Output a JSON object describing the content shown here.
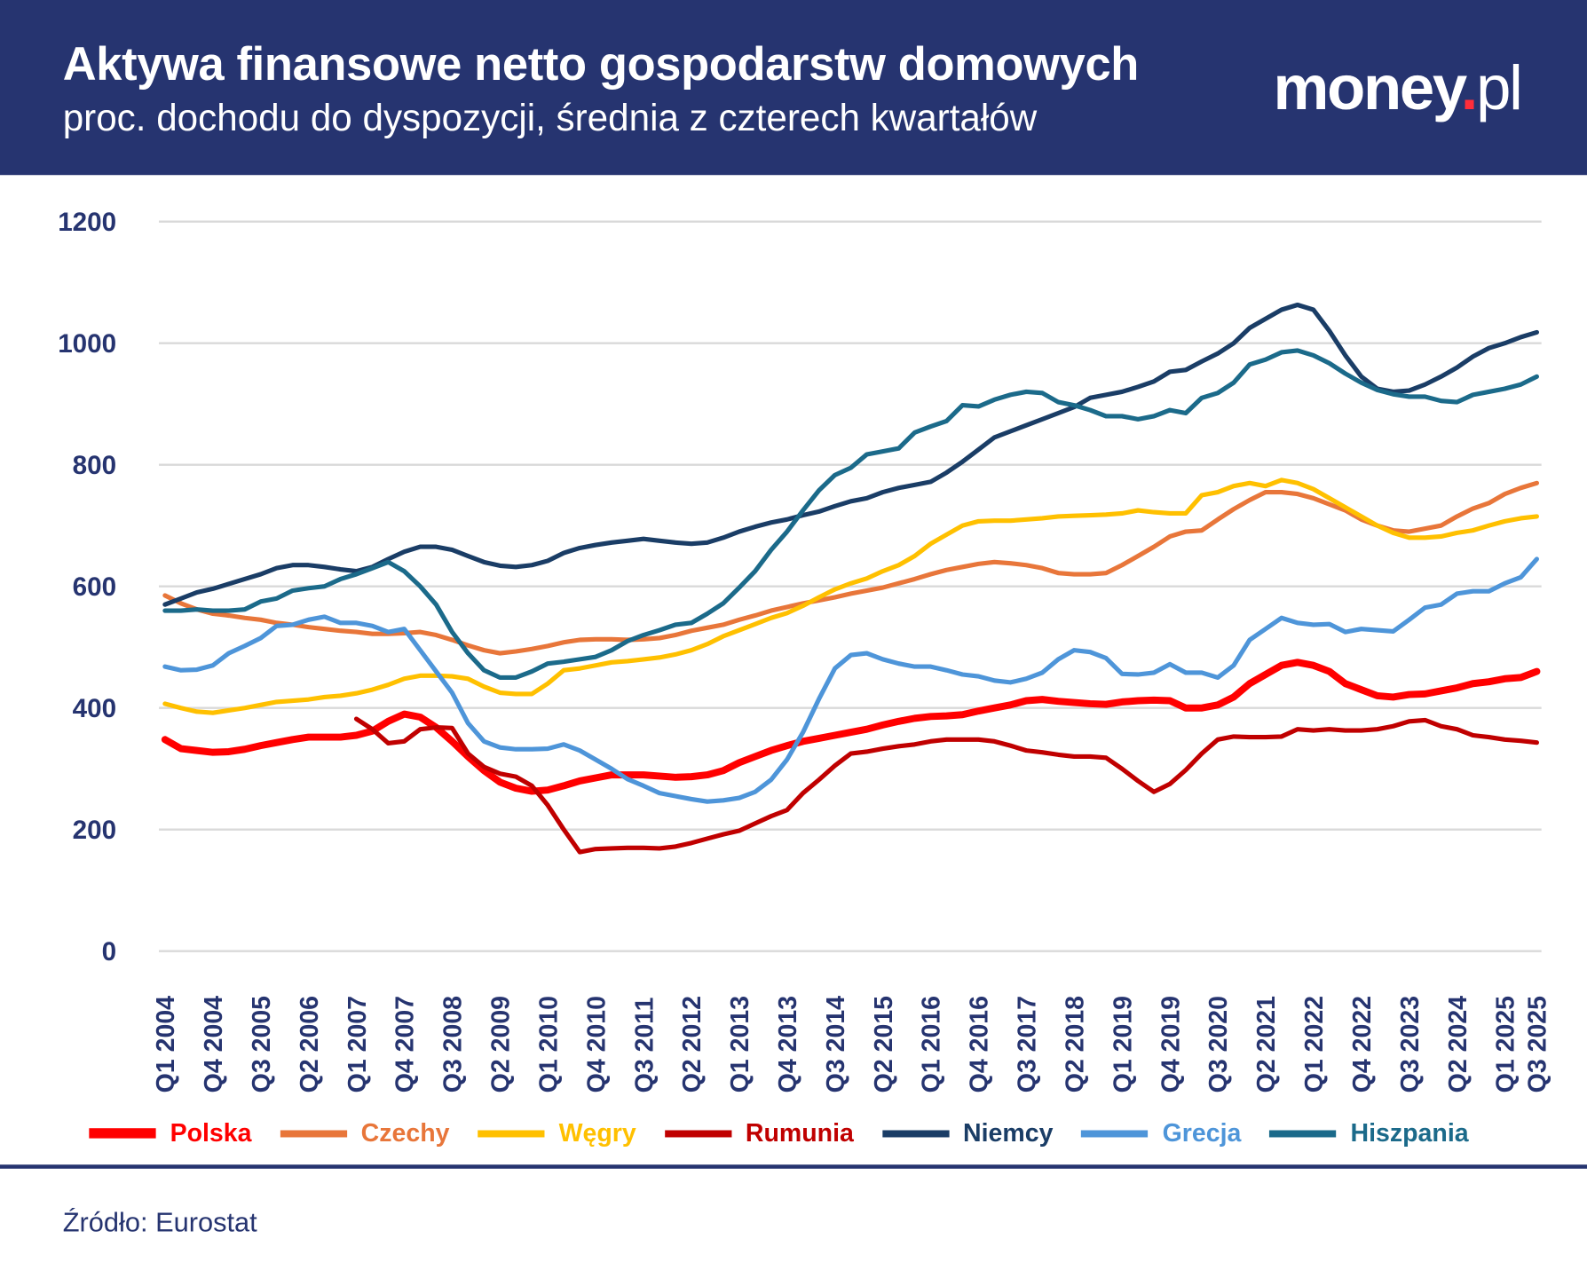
{
  "header": {
    "title": "Aktywa finansowe netto gospodarstw domowych",
    "subtitle": "proc. dochodu do dyspozycji, średnia z czterech kwartałów",
    "logo": "money.pl"
  },
  "source": "Źródło: Eurostat",
  "chart_data": {
    "type": "line",
    "title": "Aktywa finansowe netto gospodarstw domowych",
    "subtitle": "proc. dochodu do dyspozycji, średnia z czterech kwartałów",
    "x_start": "Q1 2004",
    "x_end": "Q3 2025",
    "x_frequency": "quarterly",
    "x_tick_labels": [
      "Q1 2004",
      "Q4 2004",
      "Q3 2005",
      "Q2 2006",
      "Q1 2007",
      "Q4 2007",
      "Q3 2008",
      "Q2 2009",
      "Q1 2010",
      "Q4 2010",
      "Q3 2011",
      "Q2 2012",
      "Q1 2013",
      "Q4 2013",
      "Q3 2014",
      "Q2 2015",
      "Q1 2016",
      "Q4 2016",
      "Q3 2017",
      "Q2 2018",
      "Q1 2019",
      "Q4 2019",
      "Q3 2020",
      "Q2 2021",
      "Q1 2022",
      "Q4 2022",
      "Q3 2023",
      "Q2 2024",
      "Q1 2025",
      "Q3 2025"
    ],
    "y_ticks": [
      0,
      200,
      400,
      600,
      800,
      1000,
      1200
    ],
    "ylim": [
      0,
      1200
    ],
    "grid": "horizontal",
    "legend": "bottom",
    "series": [
      {
        "name": "Polska",
        "color": "#ff0000",
        "values": [
          348,
          333,
          330,
          327,
          328,
          332,
          338,
          343,
          348,
          352,
          352,
          352,
          355,
          362,
          378,
          390,
          385,
          368,
          345,
          320,
          297,
          278,
          268,
          263,
          265,
          272,
          280,
          285,
          290,
          290,
          290,
          288,
          286,
          287,
          290,
          297,
          310,
          320,
          330,
          338,
          345,
          350,
          355,
          360,
          365,
          372,
          378,
          383,
          386,
          387,
          389,
          395,
          400,
          405,
          412,
          414,
          411,
          409,
          407,
          406,
          410,
          412,
          413,
          412,
          400,
          400,
          405,
          418,
          440,
          455,
          470,
          475,
          470,
          460,
          440,
          430,
          420,
          418,
          422,
          423,
          428,
          433,
          440,
          443,
          448,
          450,
          460
        ]
      },
      {
        "name": "Czechy",
        "color": "#e8763a",
        "values": [
          585,
          572,
          562,
          555,
          552,
          548,
          545,
          540,
          537,
          533,
          530,
          527,
          525,
          522,
          522,
          523,
          525,
          520,
          512,
          503,
          495,
          490,
          493,
          497,
          502,
          508,
          512,
          513,
          513,
          512,
          513,
          515,
          520,
          527,
          532,
          537,
          545,
          552,
          560,
          566,
          572,
          577,
          582,
          588,
          593,
          598,
          605,
          612,
          620,
          627,
          632,
          637,
          640,
          638,
          635,
          630,
          622,
          620,
          620,
          622,
          635,
          650,
          665,
          682,
          690,
          692,
          710,
          727,
          742,
          755,
          755,
          752,
          745,
          735,
          725,
          710,
          700,
          692,
          690,
          695,
          700,
          715,
          728,
          737,
          752,
          762,
          770
        ]
      },
      {
        "name": "Węgry",
        "color": "#ffc000",
        "values": [
          407,
          400,
          394,
          392,
          396,
          400,
          405,
          410,
          412,
          414,
          418,
          420,
          424,
          430,
          438,
          448,
          453,
          453,
          452,
          448,
          435,
          425,
          423,
          423,
          440,
          462,
          465,
          470,
          475,
          477,
          480,
          483,
          488,
          495,
          505,
          518,
          528,
          538,
          548,
          556,
          568,
          582,
          595,
          605,
          613,
          625,
          635,
          650,
          670,
          685,
          700,
          707,
          708,
          708,
          710,
          712,
          715,
          716,
          717,
          718,
          720,
          725,
          722,
          720,
          720,
          750,
          755,
          765,
          770,
          765,
          775,
          770,
          760,
          745,
          730,
          715,
          700,
          688,
          680,
          680,
          682,
          688,
          692,
          700,
          707,
          712,
          715
        ]
      },
      {
        "name": "Rumunia",
        "color": "#c00000",
        "values": [
          null,
          null,
          null,
          null,
          null,
          null,
          null,
          null,
          null,
          null,
          null,
          null,
          382,
          365,
          342,
          345,
          365,
          368,
          367,
          325,
          303,
          292,
          287,
          272,
          240,
          200,
          163,
          168,
          169,
          170,
          170,
          169,
          172,
          178,
          185,
          192,
          198,
          210,
          222,
          232,
          260,
          282,
          305,
          325,
          328,
          333,
          337,
          340,
          345,
          348,
          348,
          348,
          345,
          338,
          330,
          327,
          323,
          320,
          320,
          318,
          300,
          280,
          262,
          275,
          298,
          325,
          348,
          353,
          352,
          352,
          353,
          365,
          363,
          365,
          363,
          363,
          365,
          370,
          378,
          380,
          370,
          365,
          355,
          352,
          348,
          346,
          343
        ]
      },
      {
        "name": "Niemcy",
        "color": "#1a3d66",
        "values": [
          570,
          580,
          590,
          596,
          604,
          612,
          620,
          630,
          635,
          635,
          632,
          628,
          625,
          632,
          645,
          657,
          665,
          665,
          660,
          650,
          640,
          634,
          632,
          635,
          642,
          655,
          663,
          668,
          672,
          675,
          678,
          675,
          672,
          670,
          672,
          680,
          690,
          698,
          705,
          710,
          717,
          723,
          732,
          740,
          745,
          755,
          762,
          767,
          772,
          787,
          805,
          825,
          845,
          855,
          865,
          875,
          885,
          895,
          910,
          915,
          920,
          928,
          937,
          953,
          956,
          970,
          983,
          1000,
          1025,
          1040,
          1055,
          1063,
          1055,
          1020,
          980,
          945,
          925,
          920,
          922,
          932,
          945,
          960,
          978,
          992,
          1000,
          1010,
          1018
        ]
      },
      {
        "name": "Grecja",
        "color": "#4e95d9",
        "values": [
          468,
          462,
          463,
          470,
          490,
          502,
          515,
          535,
          537,
          545,
          550,
          540,
          540,
          535,
          525,
          530,
          495,
          460,
          425,
          375,
          345,
          335,
          332,
          332,
          333,
          340,
          330,
          315,
          300,
          283,
          272,
          260,
          255,
          250,
          246,
          248,
          252,
          262,
          282,
          315,
          360,
          415,
          465,
          487,
          490,
          480,
          473,
          468,
          468,
          462,
          455,
          452,
          445,
          442,
          448,
          458,
          480,
          495,
          492,
          482,
          456,
          455,
          458,
          472,
          458,
          458,
          450,
          470,
          512,
          530,
          548,
          540,
          537,
          538,
          525,
          530,
          528,
          526,
          545,
          565,
          570,
          588,
          592,
          592,
          605,
          615,
          645
        ]
      },
      {
        "name": "Hiszpania",
        "color": "#1b6a8a",
        "values": [
          560,
          560,
          562,
          560,
          560,
          562,
          575,
          580,
          593,
          597,
          600,
          612,
          620,
          630,
          640,
          625,
          600,
          570,
          525,
          490,
          462,
          450,
          450,
          460,
          473,
          476,
          480,
          484,
          495,
          510,
          520,
          528,
          537,
          540,
          555,
          572,
          598,
          625,
          660,
          690,
          725,
          758,
          783,
          795,
          817,
          822,
          827,
          853,
          863,
          872,
          898,
          896,
          907,
          915,
          920,
          918,
          903,
          898,
          890,
          880,
          880,
          875,
          880,
          890,
          885,
          910,
          918,
          935,
          965,
          973,
          985,
          988,
          980,
          967,
          950,
          935,
          923,
          916,
          912,
          912,
          905,
          903,
          915,
          920,
          925,
          932,
          945
        ]
      }
    ]
  }
}
